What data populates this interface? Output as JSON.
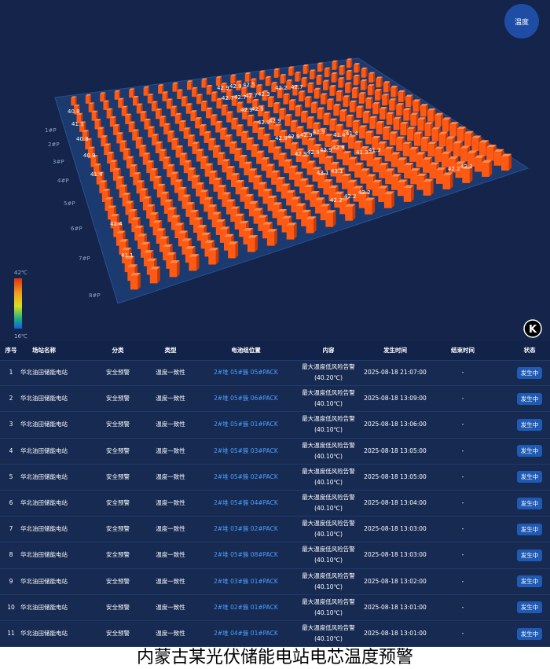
{
  "viz": {
    "button": "温度",
    "logo": "K",
    "legend_max": "42℃",
    "legend_min": "16℃",
    "row_labels": [
      "1#P",
      "2#P",
      "3#P",
      "4#P",
      "5#P",
      "6#P",
      "7#P",
      "8#P"
    ],
    "labels": [
      "40.8",
      "41.1",
      "40.8",
      "40.9",
      "41.4",
      "41.4",
      "41.1",
      "42.9",
      "42.9",
      "42.5",
      "42.2",
      "42.7",
      "42.7",
      "42.7",
      "42.7",
      "42.3",
      "42.9",
      "42.9",
      "42.9",
      "42.9",
      "42.9",
      "42.9",
      "42.9",
      "42.9",
      "41.4",
      "41.4",
      "42.9",
      "42.9",
      "42.9",
      "42.9",
      "41.3",
      "41.3",
      "43.1",
      "43.1",
      "42.2",
      "42.2",
      "42.2",
      "42.2",
      "42.2"
    ]
  },
  "table": {
    "headers": [
      "序号",
      "场站名称",
      "分类",
      "类型",
      "电池组位置",
      "内容",
      "发生时间",
      "结束时间",
      "状态"
    ],
    "rows": [
      {
        "no": "1",
        "station": "华北油田储能电站",
        "category": "安全预警",
        "type": "温度一致性",
        "position": "2#堆 05#簇 05#PACK",
        "alert": "最大温度低风险告警",
        "reading": "(40.20℃)",
        "start": "2025-08-18 21:07:00",
        "end": "-",
        "status": "发生中"
      },
      {
        "no": "2",
        "station": "华北油田储能电站",
        "category": "安全预警",
        "type": "温度一致性",
        "position": "2#堆 05#簇 06#PACK",
        "alert": "最大温度低风险告警",
        "reading": "(40.10℃)",
        "start": "2025-08-18 13:09:00",
        "end": "-",
        "status": "发生中"
      },
      {
        "no": "3",
        "station": "华北油田储能电站",
        "category": "安全预警",
        "type": "温度一致性",
        "position": "2#堆 05#簇 01#PACK",
        "alert": "最大温度低风险告警",
        "reading": "(40.10℃)",
        "start": "2025-08-18 13:06:00",
        "end": "-",
        "status": "发生中"
      },
      {
        "no": "4",
        "station": "华北油田储能电站",
        "category": "安全预警",
        "type": "温度一致性",
        "position": "2#堆 05#簇 03#PACK",
        "alert": "最大温度低风险告警",
        "reading": "(40.10℃)",
        "start": "2025-08-18 13:05:00",
        "end": "-",
        "status": "发生中"
      },
      {
        "no": "5",
        "station": "华北油田储能电站",
        "category": "安全预警",
        "type": "温度一致性",
        "position": "2#堆 05#簇 02#PACK",
        "alert": "最大温度低风险告警",
        "reading": "(40.10℃)",
        "start": "2025-08-18 13:05:00",
        "end": "-",
        "status": "发生中"
      },
      {
        "no": "6",
        "station": "华北油田储能电站",
        "category": "安全预警",
        "type": "温度一致性",
        "position": "2#堆 05#簇 04#PACK",
        "alert": "最大温度低风险告警",
        "reading": "(40.10℃)",
        "start": "2025-08-18 13:04:00",
        "end": "-",
        "status": "发生中"
      },
      {
        "no": "7",
        "station": "华北油田储能电站",
        "category": "安全预警",
        "type": "温度一致性",
        "position": "2#堆 03#簇 02#PACK",
        "alert": "最大温度低风险告警",
        "reading": "(40.10℃)",
        "start": "2025-08-18 13:03:00",
        "end": "-",
        "status": "发生中"
      },
      {
        "no": "8",
        "station": "华北油田储能电站",
        "category": "安全预警",
        "type": "温度一致性",
        "position": "2#堆 05#簇 08#PACK",
        "alert": "最大温度低风险告警",
        "reading": "(40.10℃)",
        "start": "2025-08-18 13:03:00",
        "end": "-",
        "status": "发生中"
      },
      {
        "no": "9",
        "station": "华北油田储能电站",
        "category": "安全预警",
        "type": "温度一致性",
        "position": "2#堆 03#簇 01#PACK",
        "alert": "最大温度低风险告警",
        "reading": "(40.10℃)",
        "start": "2025-08-18 13:02:00",
        "end": "-",
        "status": "发生中"
      },
      {
        "no": "10",
        "station": "华北油田储能电站",
        "category": "安全预警",
        "type": "温度一致性",
        "position": "2#堆 02#簇 01#PACK",
        "alert": "最大温度低风险告警",
        "reading": "(40.10℃)",
        "start": "2025-08-18 13:01:00",
        "end": "-",
        "status": "发生中"
      },
      {
        "no": "11",
        "station": "华北油田储能电站",
        "category": "安全预警",
        "type": "温度一致性",
        "position": "2#堆 04#簇 01#PACK",
        "alert": "最大温度低风险告警",
        "reading": "(40.10℃)",
        "start": "2025-08-18 13:01:00",
        "end": "-",
        "status": "发生中"
      }
    ]
  },
  "caption": "内蒙古某光伏储能电站电芯温度预警"
}
